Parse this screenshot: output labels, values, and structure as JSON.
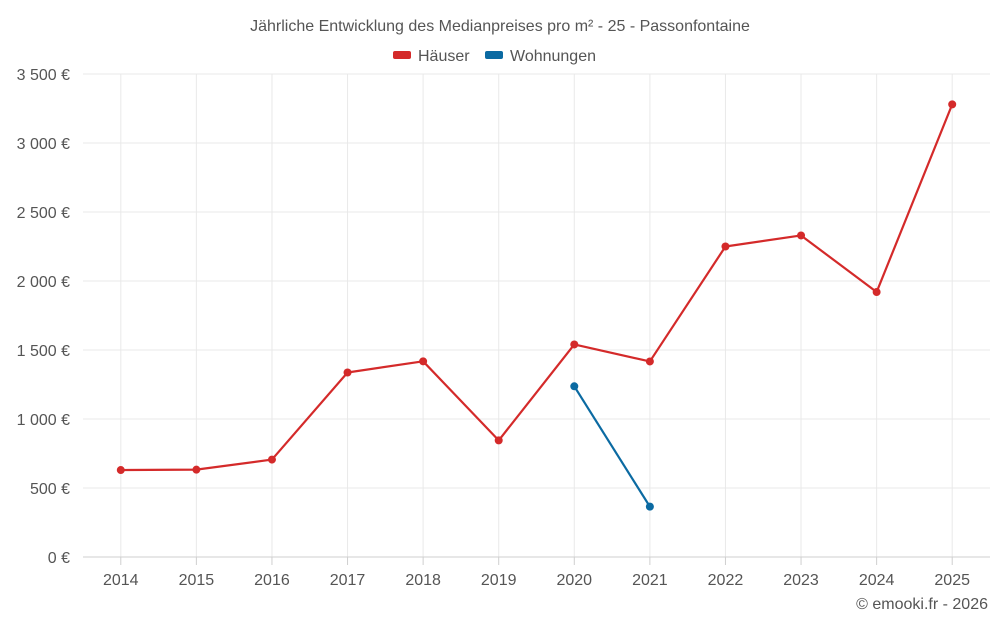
{
  "chart_data": {
    "type": "line",
    "title": "Jährliche Entwicklung des Medianpreises pro m² - 25 - Passonfontaine",
    "categories": [
      "2014",
      "2015",
      "2016",
      "2017",
      "2018",
      "2019",
      "2020",
      "2021",
      "2022",
      "2023",
      "2024",
      "2025"
    ],
    "series": [
      {
        "name": "Häuser",
        "color": "#d42a2a",
        "values": [
          630,
          633,
          706,
          1337,
          1418,
          845,
          1540,
          1417,
          2250,
          2330,
          1920,
          3280
        ]
      },
      {
        "name": "Wohnungen",
        "color": "#0b6aa2",
        "values": [
          null,
          null,
          null,
          null,
          null,
          null,
          1237,
          365,
          null,
          null,
          null,
          null
        ]
      }
    ],
    "ylim": [
      0,
      3500
    ],
    "yticks": [
      0,
      500,
      1000,
      1500,
      2000,
      2500,
      3000,
      3500
    ],
    "ytick_labels": [
      "0 €",
      "500 €",
      "1 000 €",
      "1 500 €",
      "2 000 €",
      "2 500 €",
      "3 000 €",
      "3 500 €"
    ],
    "grid": true,
    "legend_position": "top-center",
    "credit": "© emooki.fr - 2026"
  }
}
